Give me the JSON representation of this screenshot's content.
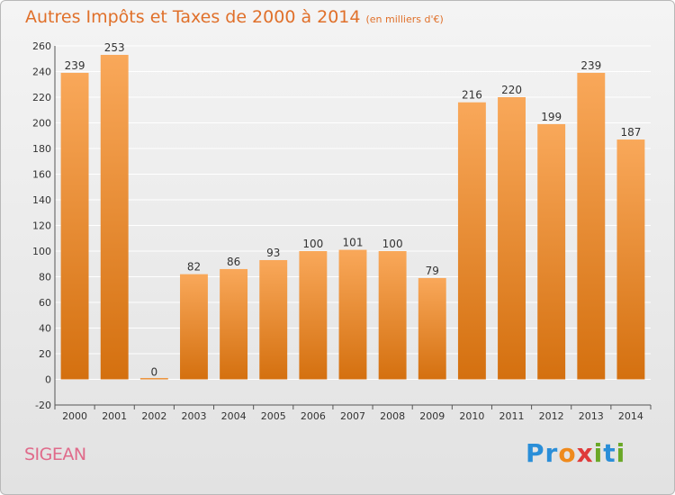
{
  "header": {
    "title": "Autres Impôts et Taxes de 2000 à 2014",
    "unit": "(en milliers d'€)"
  },
  "footer": {
    "place": "SIGEAN",
    "logo": "Proxiti"
  },
  "colors": {
    "bar_light": "#f9a85a",
    "bar_dark": "#d4700f",
    "grid": "#ffffff",
    "title": "#e0702a"
  },
  "chart_data": {
    "type": "bar",
    "categories": [
      "2000",
      "2001",
      "2002",
      "2003",
      "2004",
      "2005",
      "2006",
      "2007",
      "2008",
      "2009",
      "2010",
      "2011",
      "2012",
      "2013",
      "2014"
    ],
    "values": [
      239,
      253,
      0,
      82,
      86,
      93,
      100,
      101,
      100,
      79,
      216,
      220,
      199,
      239,
      187
    ],
    "title": "Autres Impôts et Taxes de 2000 à 2014",
    "xlabel": "",
    "ylabel": "",
    "ylim": [
      -20,
      260
    ],
    "yticks": [
      -20,
      0,
      20,
      40,
      60,
      80,
      100,
      120,
      140,
      160,
      180,
      200,
      220,
      240,
      260
    ],
    "grid": true,
    "data_labels": true
  }
}
